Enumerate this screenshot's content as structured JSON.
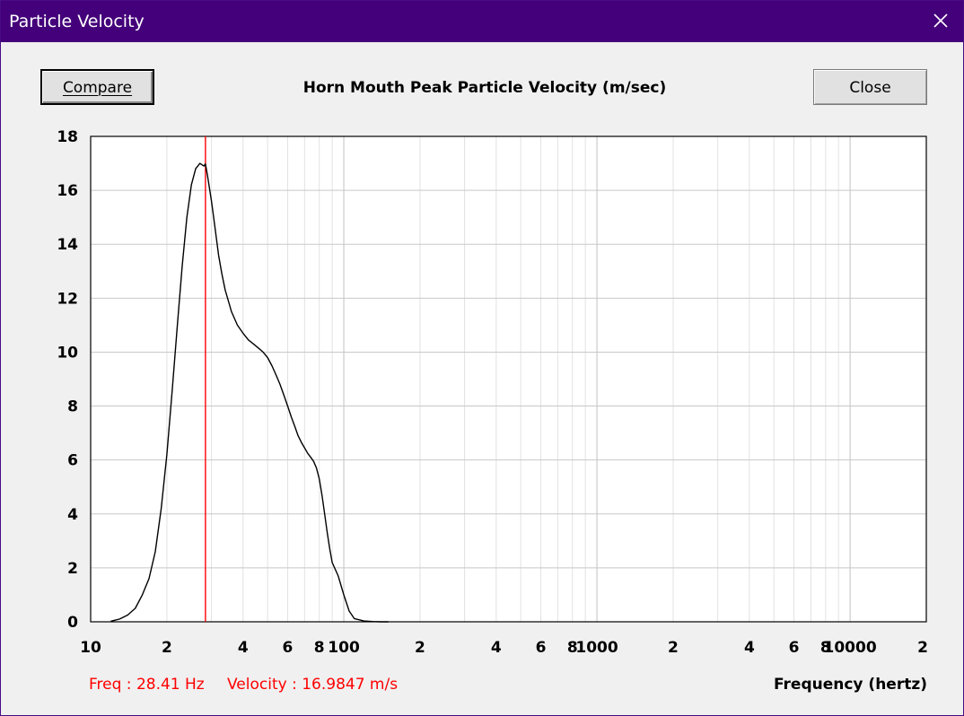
{
  "window": {
    "title": "Particle Velocity",
    "close_icon": "close-icon"
  },
  "toolbar": {
    "compare_label": "Compare",
    "close_label": "Close"
  },
  "chart_title": "Horn Mouth Peak Particle Velocity (m/sec)",
  "readout": {
    "freq": "Freq : 28.41 Hz",
    "velocity": "Velocity : 16.9847 m/s"
  },
  "x_axis_label": "Frequency (hertz)",
  "chart_data": {
    "type": "line",
    "title": "Horn Mouth Peak Particle Velocity (m/sec)",
    "xlabel": "Frequency (hertz)",
    "ylabel": "",
    "x_scale": "log",
    "xlim": [
      10,
      20000
    ],
    "ylim": [
      0,
      18
    ],
    "grid": true,
    "y_ticks": [
      "0",
      "2",
      "4",
      "6",
      "8",
      "10",
      "12",
      "14",
      "16",
      "18"
    ],
    "x_ticks": [
      "10",
      "2",
      "4",
      "6",
      "8",
      "100",
      "2",
      "4",
      "6",
      "8",
      "1000",
      "2",
      "4",
      "6",
      "8",
      "10000",
      "2"
    ],
    "cursor": {
      "x": 28.41,
      "y": 16.9847,
      "color": "#ff0000"
    },
    "series": [
      {
        "color": "#000000",
        "x": [
          12,
          13,
          14,
          15,
          16,
          17,
          18,
          19,
          20,
          21,
          22,
          23,
          24,
          25,
          26,
          27,
          28,
          28.41,
          29,
          30,
          31,
          32,
          33,
          34,
          35,
          36,
          38,
          40,
          42,
          44,
          46,
          48,
          50,
          52,
          54,
          56,
          58,
          60,
          62,
          64,
          66,
          68,
          70,
          72,
          74,
          76,
          78,
          80,
          82,
          84,
          86,
          88,
          90,
          95,
          100,
          105,
          110,
          120,
          130,
          140,
          150
        ],
        "y": [
          0.02,
          0.1,
          0.25,
          0.5,
          1.0,
          1.6,
          2.6,
          4.2,
          6.2,
          8.6,
          11.0,
          13.2,
          15.0,
          16.2,
          16.8,
          17.0,
          16.9,
          16.98,
          16.5,
          15.6,
          14.6,
          13.6,
          12.9,
          12.3,
          11.9,
          11.5,
          11.0,
          10.7,
          10.45,
          10.3,
          10.15,
          10.0,
          9.8,
          9.5,
          9.15,
          8.8,
          8.4,
          8.0,
          7.6,
          7.25,
          6.9,
          6.65,
          6.45,
          6.25,
          6.1,
          5.95,
          5.7,
          5.3,
          4.7,
          4.0,
          3.3,
          2.7,
          2.2,
          1.7,
          1.0,
          0.4,
          0.12,
          0.03,
          0.01,
          0.0,
          0.0
        ]
      }
    ]
  }
}
